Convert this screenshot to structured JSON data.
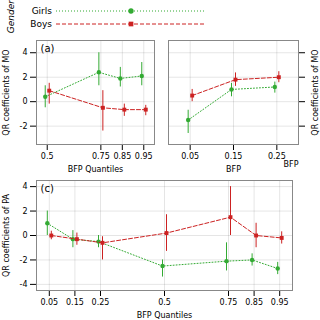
{
  "chart_data": [
    {
      "type": "line",
      "title": "(a)",
      "xlabel": "BFP Quantiles",
      "ylabel": "QR coefficients of MO",
      "x": [
        0.5,
        0.75,
        0.85,
        0.95
      ],
      "xlim": [
        0.45,
        1.0
      ],
      "xticks": [
        0.5,
        0.75,
        0.85,
        0.95
      ],
      "ylim": [
        -3.5,
        5.0
      ],
      "yticks": [
        -2,
        0,
        2,
        4
      ],
      "grid": true,
      "legend": "top",
      "annotations": [
        "Gender"
      ],
      "series": [
        {
          "name": "Girls",
          "color": "#33aa33",
          "marker": "circle",
          "line_style": "dotted",
          "values": [
            0.4,
            2.4,
            1.9,
            2.1
          ],
          "error_low": [
            0.9,
            1.1,
            0.7,
            0.8
          ],
          "error_high": [
            0.9,
            1.6,
            0.9,
            1.1
          ]
        },
        {
          "name": "Boys",
          "color": "#cc2222",
          "marker": "square",
          "line_style": "dashed",
          "values": [
            0.9,
            -0.5,
            -0.65,
            -0.65
          ],
          "error_low": [
            1.1,
            1.9,
            0.55,
            0.5
          ],
          "error_high": [
            0.6,
            1.4,
            0.45,
            0.35
          ]
        }
      ]
    },
    {
      "type": "line",
      "xlabel": "BFP",
      "ylabel": "QR coefficients of MO",
      "x": [
        0.05,
        0.15,
        0.25
      ],
      "xlim": [
        0.0,
        0.3
      ],
      "xticks": [
        0.05,
        0.15,
        0.25
      ],
      "ylim": [
        -3.5,
        5.0
      ],
      "yticks": [
        -2,
        0,
        2,
        4
      ],
      "grid": true,
      "tick_labels": "x",
      "annotations": [
        "BFP"
      ],
      "series": [
        {
          "name": "Girls",
          "color": "#33aa33",
          "marker": "circle",
          "line_style": "dotted",
          "values": [
            -1.5,
            1.0,
            1.2
          ],
          "error_low": [
            1.1,
            0.6,
            0.5
          ],
          "error_high": [
            0.8,
            0.5,
            0.4
          ]
        },
        {
          "name": "Boys",
          "color": "#cc2222",
          "marker": "square",
          "line_style": "dashed",
          "values": [
            0.5,
            1.8,
            2.0
          ],
          "error_low": [
            0.5,
            0.55,
            0.45
          ],
          "error_high": [
            0.5,
            0.55,
            0.45
          ]
        }
      ]
    },
    {
      "type": "line",
      "title": "(c)",
      "xlabel": "BFP Quantiles",
      "ylabel": "QR coefficients of PA",
      "x": [
        0.05,
        0.15,
        0.25,
        0.5,
        0.75,
        0.85,
        0.95
      ],
      "xlim": [
        0.0,
        1.0
      ],
      "xticks": [
        0.05,
        0.15,
        0.25,
        0.5,
        0.75,
        0.85,
        0.95
      ],
      "ylim": [
        -4.5,
        4.5
      ],
      "yticks": [
        -4,
        -2,
        0,
        2,
        4
      ],
      "grid": true,
      "series": [
        {
          "name": "Girls",
          "color": "#33aa33",
          "marker": "circle",
          "line_style": "dotted",
          "values": [
            1.0,
            -0.3,
            -0.5,
            -2.5,
            -2.1,
            -2.0,
            -2.7
          ],
          "error_low": [
            1.0,
            0.7,
            0.5,
            0.9,
            0.8,
            0.5,
            0.5
          ],
          "error_high": [
            1.0,
            0.7,
            0.5,
            0.5,
            1.5,
            0.5,
            0.5
          ]
        },
        {
          "name": "Boys",
          "color": "#cc2222",
          "marker": "square",
          "line_style": "dashed",
          "values": [
            0.0,
            -0.3,
            -0.6,
            0.2,
            1.5,
            0.0,
            -0.2
          ],
          "error_low": [
            0.35,
            0.5,
            1.4,
            1.5,
            1.5,
            1.0,
            0.5
          ],
          "error_high": [
            0.35,
            0.5,
            0.5,
            1.5,
            2.5,
            1.0,
            0.5
          ]
        }
      ]
    }
  ]
}
